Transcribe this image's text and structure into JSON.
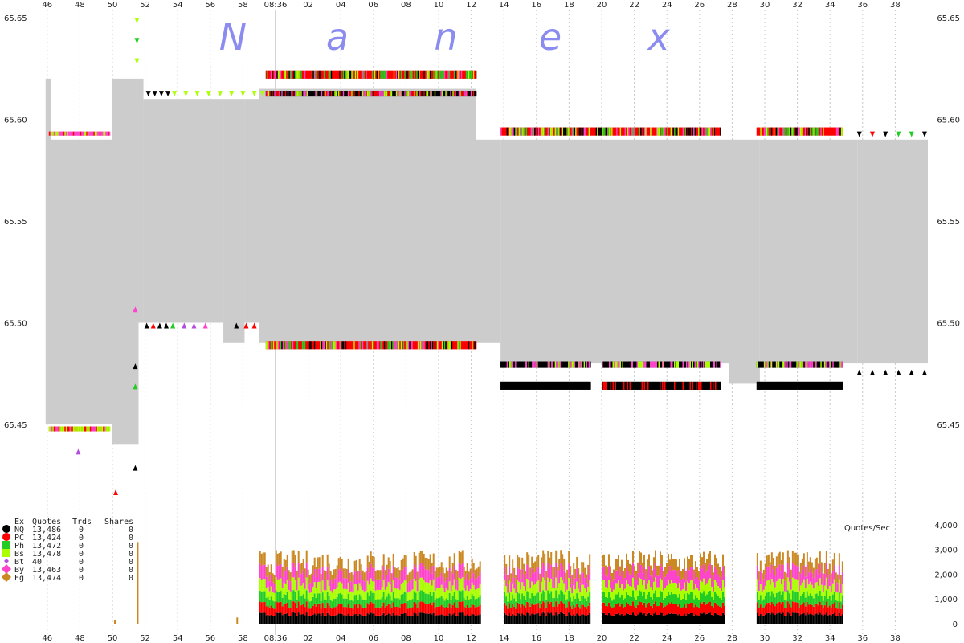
{
  "watermark": [
    "N",
    "a",
    "n",
    "e",
    "x"
  ],
  "colors": {
    "spread": "#cccccc",
    "grid": "#c8c8c8",
    "NQ": "#000000",
    "PC": "#ff0000",
    "Ph": "#22cc22",
    "Bs": "#aaff00",
    "Bt": "#b44ddd",
    "By": "#ff44cc",
    "Eg": "#cc8822"
  },
  "legend": {
    "headers": [
      "Ex",
      "Quotes",
      "Trds",
      "Shares"
    ],
    "rows": [
      {
        "ex": "NQ",
        "quotes": "13,486",
        "trds": "0",
        "shares": "0",
        "color": "#000000",
        "marker": "circle"
      },
      {
        "ex": "PC",
        "quotes": "13,424",
        "trds": "0",
        "shares": "0",
        "color": "#ff0000",
        "marker": "circle"
      },
      {
        "ex": "Ph",
        "quotes": "13,472",
        "trds": "0",
        "shares": "0",
        "color": "#22cc22",
        "marker": "square"
      },
      {
        "ex": "Bs",
        "quotes": "13,478",
        "trds": "0",
        "shares": "0",
        "color": "#aaff00",
        "marker": "square"
      },
      {
        "ex": "Bt",
        "quotes": "40",
        "trds": "0",
        "shares": "0",
        "color": "#b44ddd",
        "marker": "diamond-small"
      },
      {
        "ex": "By",
        "quotes": "13,463",
        "trds": "0",
        "shares": "0",
        "color": "#ff44cc",
        "marker": "diamond"
      },
      {
        "ex": "Eg",
        "quotes": "13,474",
        "trds": "0",
        "shares": "0",
        "color": "#cc8822",
        "marker": "diamond"
      }
    ]
  },
  "chart_data": [
    {
      "type": "area",
      "x_ticks": [
        "46",
        "48",
        "50",
        "52",
        "54",
        "56",
        "58",
        "08:36",
        "02",
        "04",
        "06",
        "08",
        "10",
        "12",
        "14",
        "16",
        "18",
        "20",
        "22",
        "24",
        "26",
        "28",
        "30",
        "32",
        "34",
        "36",
        "38"
      ],
      "x_tick_minutes": [
        -14,
        -12,
        -10,
        -8,
        -6,
        -4,
        -2,
        0,
        2,
        4,
        6,
        8,
        10,
        12,
        14,
        16,
        18,
        20,
        22,
        24,
        26,
        28,
        30,
        32,
        34,
        36,
        38
      ],
      "y_ticks": [
        "65.65",
        "65.60",
        "65.55",
        "65.50",
        "65.45"
      ],
      "ylim": [
        65.4,
        65.655
      ],
      "grid": true,
      "series": [
        {
          "name": "spread",
          "segments": [
            [
              -14.1,
              -13.75,
              65.62,
              65.45
            ],
            [
              -13.75,
              -11.0,
              65.59,
              65.45
            ],
            [
              -11.0,
              -10.05,
              65.59,
              65.45
            ],
            [
              -10.05,
              -9.0,
              65.62,
              65.44
            ],
            [
              -9.0,
              -8.4,
              65.62,
              65.44
            ],
            [
              -8.4,
              -8.1,
              65.62,
              65.5
            ],
            [
              -8.1,
              -3.2,
              65.61,
              65.5
            ],
            [
              -3.2,
              -1.9,
              65.61,
              65.49
            ],
            [
              -1.9,
              -1.0,
              65.61,
              65.5
            ],
            [
              -1.0,
              12.3,
              65.615,
              65.49
            ],
            [
              12.3,
              13.8,
              65.59,
              65.49
            ],
            [
              13.8,
              27.8,
              65.59,
              65.48
            ],
            [
              27.8,
              29.7,
              65.59,
              65.47
            ],
            [
              29.7,
              35.7,
              65.59,
              65.48
            ],
            [
              35.7,
              40.0,
              65.59,
              65.48
            ]
          ]
        }
      ]
    },
    {
      "type": "bar",
      "title": "Quotes/Sec",
      "y_ticks": [
        "4,000",
        "3,000",
        "2,000",
        "1,000",
        "0"
      ],
      "ylim": [
        0,
        4000
      ],
      "active_periods_minutes": [
        [
          -1.0,
          12.5
        ],
        [
          14.0,
          19.3
        ],
        [
          20.0,
          27.5
        ],
        [
          29.5,
          34.8
        ]
      ],
      "stack_levels": [
        {
          "name": "NQ",
          "approx_top": 350
        },
        {
          "name": "PC",
          "approx_top": 700
        },
        {
          "name": "Ph",
          "approx_top": 1050
        },
        {
          "name": "Bs",
          "approx_top": 1450
        },
        {
          "name": "By",
          "approx_top": 1900
        },
        {
          "name": "Eg",
          "approx_top": 2300
        }
      ]
    }
  ]
}
